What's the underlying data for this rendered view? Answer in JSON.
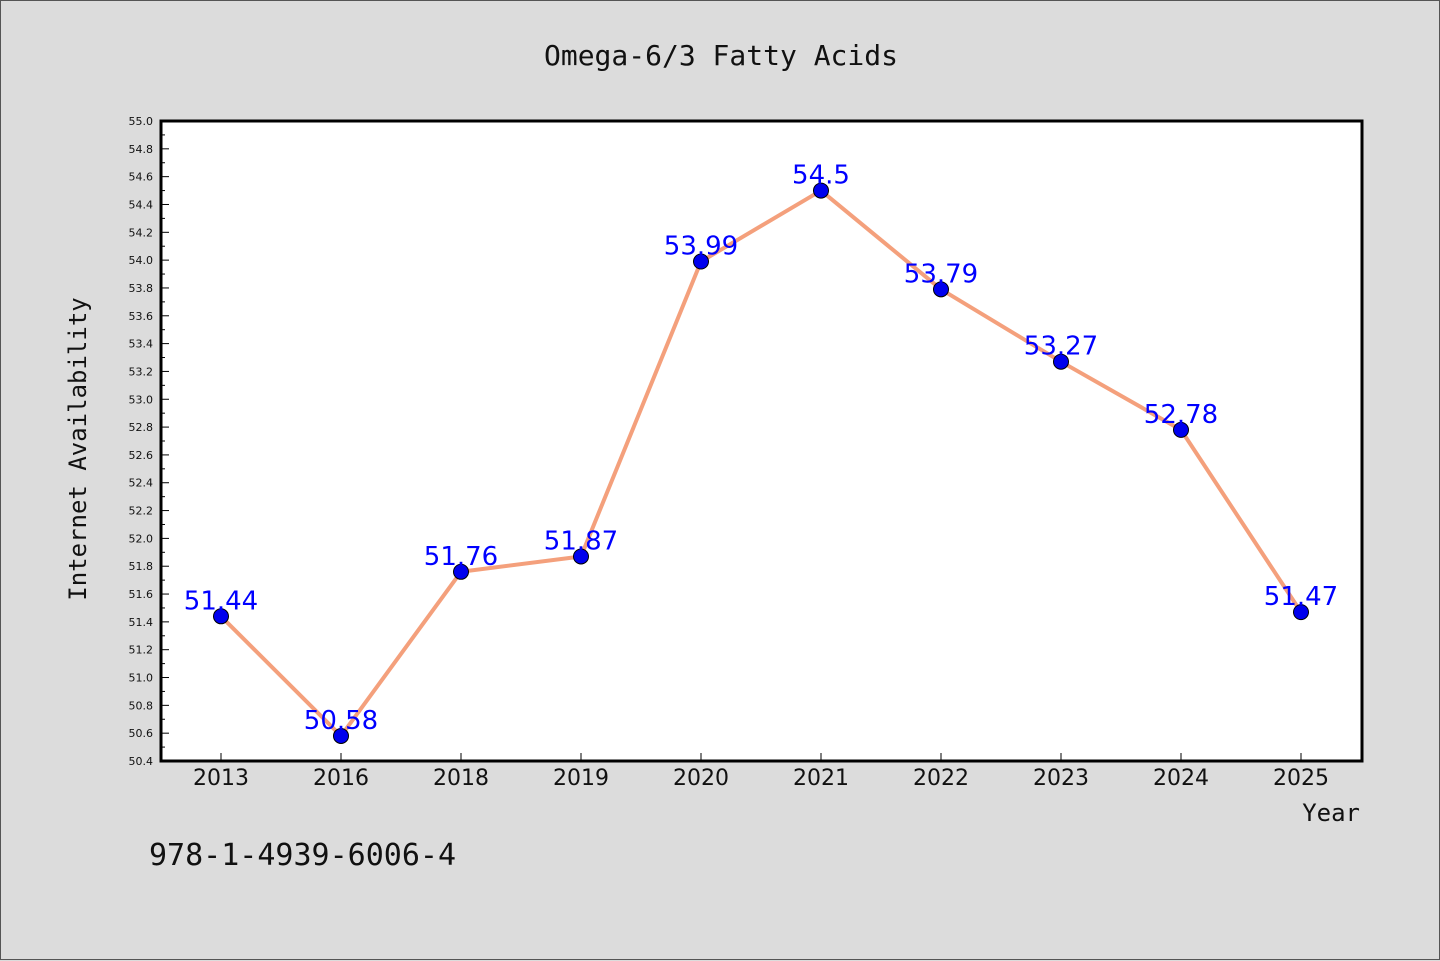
{
  "chart_data": {
    "type": "line",
    "title": "Omega-6/3 Fatty Acids",
    "xlabel": "Year",
    "ylabel": "Internet Availability",
    "categories": [
      "2013",
      "2016",
      "2018",
      "2019",
      "2020",
      "2021",
      "2022",
      "2023",
      "2024",
      "2025"
    ],
    "series": [
      {
        "values": [
          51.44,
          50.58,
          51.76,
          51.87,
          53.99,
          54.5,
          53.79,
          53.27,
          52.78,
          51.47
        ],
        "labels": [
          "51.44",
          "50.58",
          "51.76",
          "51.87",
          "53.99",
          "54.5",
          "53.79",
          "53.27",
          "52.78",
          "51.47"
        ],
        "line_color": "#f4a07c",
        "marker_color": "#0000ee",
        "label_color": "#0000ff"
      }
    ],
    "ylim": [
      50.4,
      55.0
    ],
    "y_ticks": [
      "50.4",
      "50.6",
      "50.8",
      "51.0",
      "51.2",
      "51.4",
      "51.6",
      "51.8",
      "52.0",
      "52.2",
      "52.4",
      "52.6",
      "52.8",
      "53.0",
      "53.2",
      "53.4",
      "53.6",
      "53.8",
      "54.0",
      "54.2",
      "54.4",
      "54.6",
      "54.8",
      "55.0"
    ],
    "grid": false,
    "legend": "none"
  },
  "footer_text": "978-1-4939-6006-4",
  "colors": {
    "background": "#dcdcdc",
    "plot_background": "#ffffff",
    "axis": "#000000"
  }
}
